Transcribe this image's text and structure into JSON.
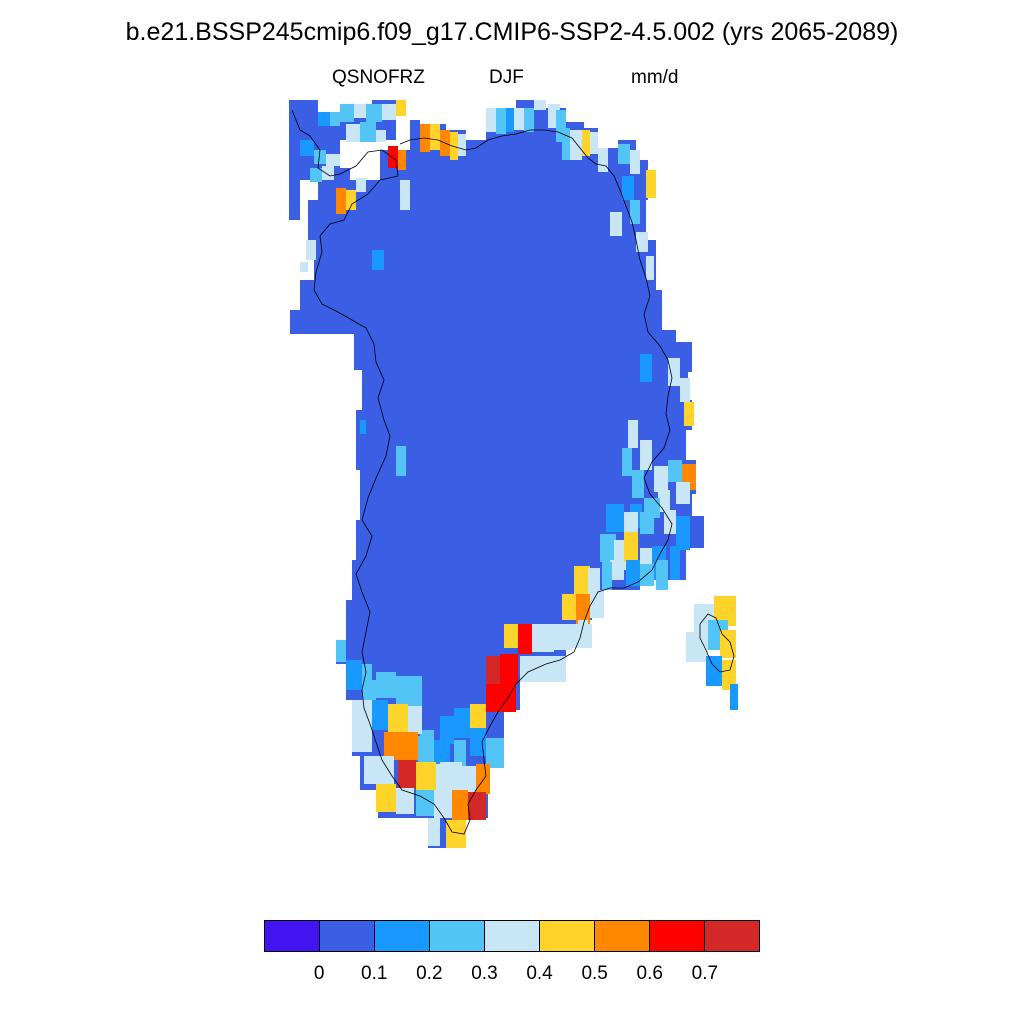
{
  "title": "b.e21.BSSP245cmip6.f09_g17.CMIP6-SSP2-4.5.002 (yrs 2065-2089)",
  "variable": "QSNOFRZ",
  "season": "DJF",
  "units": "mm/d",
  "colorbar": {
    "colors": [
      "#4413f2",
      "#3a5ee4",
      "#1999ff",
      "#52c4f6",
      "#c8e6f6",
      "#ffd42a",
      "#ff8800",
      "#ff0000",
      "#d42828"
    ],
    "labels": [
      "0",
      "0.1",
      "0.2",
      "0.3",
      "0.4",
      "0.5",
      "0.6",
      "0.7"
    ]
  },
  "map": {
    "region": "Greenland",
    "background_color": "#3a5ee4",
    "coastline_color": "#000000"
  }
}
